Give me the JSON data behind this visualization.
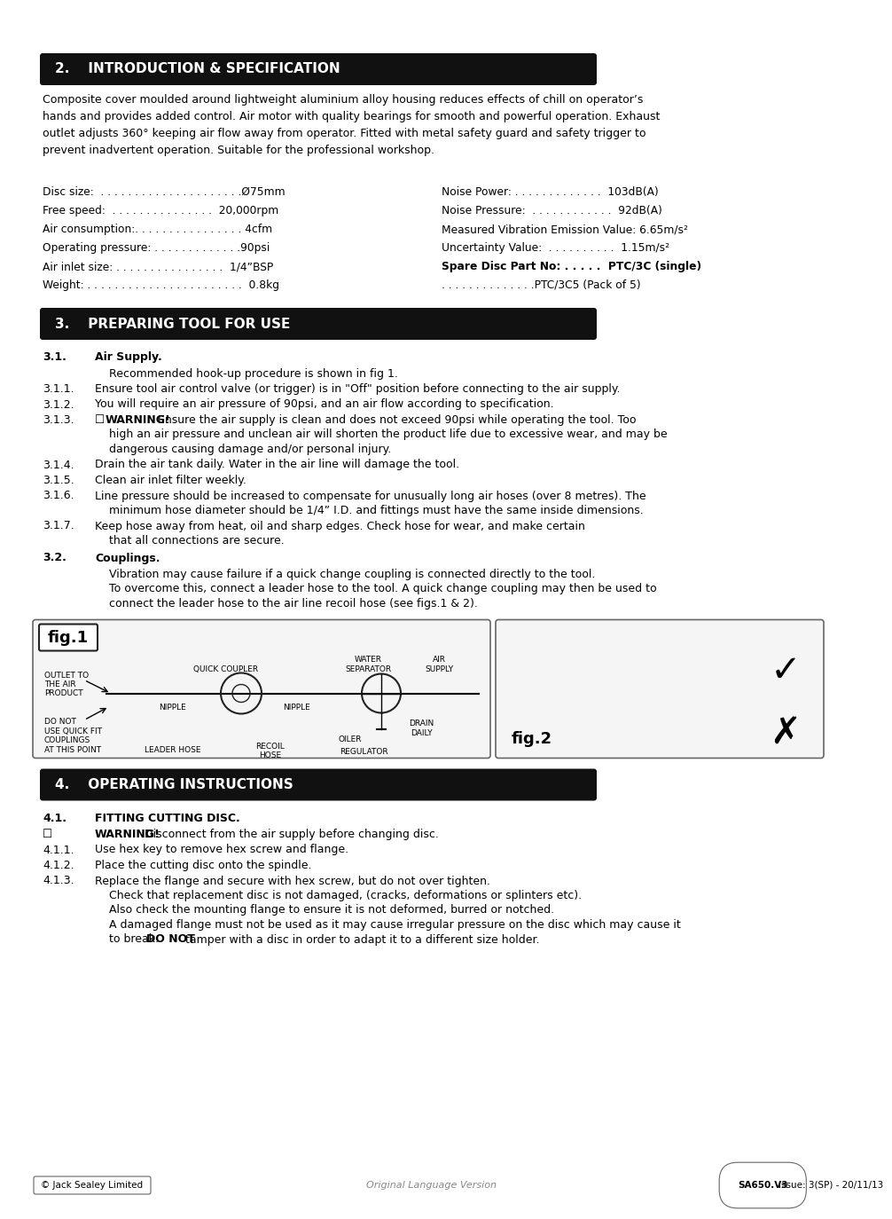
{
  "page_bg": "#ffffff",
  "header_bg": "#111111",
  "header_fg": "#ffffff",
  "body_fg": "#000000",
  "section2_title": "2.    INTRODUCTION & SPECIFICATION",
  "section3_title": "3.    PREPARING TOOL FOR USE",
  "section4_title": "4.    OPERATING INSTRUCTIONS",
  "intro_text": "Composite cover moulded around lightweight aluminium alloy housing reduces effects of chill on operator’s\nhands and provides added control. Air motor with quality bearings for smooth and powerful operation. Exhaust\noutlet adjusts 360° keeping air flow away from operator. Fitted with metal safety guard and safety trigger to\nprevent inadvertent operation. Suitable for the professional workshop.",
  "spec_left": [
    [
      "Disc size:  . . . . . . . . . . . . . . . . . . . . .Ø75mm",
      false
    ],
    [
      "Free speed:  . . . . . . . . . . . . . . .  20,000rpm",
      false
    ],
    [
      "Air consumption:. . . . . . . . . . . . . . . . 4cfm",
      false
    ],
    [
      "Operating pressure: . . . . . . . . . . . . .90psi",
      false
    ],
    [
      "Air inlet size: . . . . . . . . . . . . . . . .  1/4”BSP",
      false
    ],
    [
      "Weight: . . . . . . . . . . . . . . . . . . . . . . .  0.8kg",
      false
    ]
  ],
  "spec_right": [
    [
      "Noise Power: . . . . . . . . . . . . .  103dB(A)",
      false
    ],
    [
      "Noise Pressure:  . . . . . . . . . . . .  92dB(A)",
      false
    ],
    [
      "Measured Vibration Emission Value: 6.65m/s²",
      false
    ],
    [
      "Uncertainty Value:  . . . . . . . . . .  1.15m/s²",
      false
    ],
    [
      "Spare Disc Part No: . . . . .  PTC/3C (single)",
      true
    ],
    [
      ". . . . . . . . . . . . . .PTC/3C5 (Pack of 5)",
      false
    ]
  ],
  "s31_label": "3.1.",
  "s31_title": "Air Supply.",
  "s31_intro_indent": "Recommended hook-up procedure is shown in fig 1.",
  "s311": [
    "3.1.1.",
    "Ensure tool air control valve (or trigger) is in \"Off\" position before connecting to the air supply."
  ],
  "s312": [
    "3.1.2.",
    "You will require an air pressure of 90psi, and an air flow according to specification."
  ],
  "s313_num": "3.1.3.",
  "s313_warn_prefix": "☐",
  "s313_warn_bold": "WARNING!",
  "s313_warn_rest": " Ensure the air supply is clean and does not exceed 90psi while operating the tool. Too",
  "s313_line2": "high an air pressure and unclean air will shorten the product life due to excessive wear, and may be",
  "s313_line3": "dangerous causing damage and/or personal injury.",
  "s314": [
    "3.1.4.",
    "Drain the air tank daily. Water in the air line will damage the tool."
  ],
  "s315": [
    "3.1.5.",
    "Clean air inlet filter weekly."
  ],
  "s316": [
    "3.1.6.",
    "Line pressure should be increased to compensate for unusually long air hoses (over 8 metres). The"
  ],
  "s316_2": "minimum hose diameter should be 1/4” I.D. and fittings must have the same inside dimensions.",
  "s317": [
    "3.1.7.",
    "Keep hose away from heat, oil and sharp edges. Check hose for wear, and make certain"
  ],
  "s317_2": "that all connections are secure.",
  "s32_label": "3.2.",
  "s32_title": "Couplings.",
  "s32_line1": "Vibration may cause failure if a quick change coupling is connected directly to the tool.",
  "s32_line2": "To overcome this, connect a leader hose to the tool. A quick change coupling may then be used to",
  "s32_line3": "connect the leader hose to the air line recoil hose (see figs.1 & 2).",
  "s41_label": "4.1.",
  "s41_title": "FITTING CUTTING DISC.",
  "s41_warn_sym": "☐",
  "s41_warn_bold": "WARNING!",
  "s41_warn_rest": " Disconnect from the air supply before changing disc.",
  "s411": [
    "4.1.1.",
    "Use hex key to remove hex screw and flange."
  ],
  "s412": [
    "4.1.2.",
    "Place the cutting disc onto the spindle."
  ],
  "s413_num": "4.1.3.",
  "s413_line1": "Replace the flange and secure with hex screw, but do not over tighten.",
  "s413_line2": "Check that replacement disc is not damaged, (cracks, deformations or splinters etc).",
  "s413_line3": "Also check the mounting flange to ensure it is not deformed, burred or notched.",
  "s413_line4": "A damaged flange must not be used as it may cause irregular pressure on the disc which may cause it",
  "s413_line5_plain": "to break. ",
  "s413_line5_bold": "DO NOT",
  "s413_line5_rest": " tamper with a disc in order to adapt it to a different size holder.",
  "footer_left": "© Jack Sealey Limited",
  "footer_center": "Original Language Version",
  "footer_right": "SA650.V3",
  "footer_right2": "Issue: 3(SP) - 20/11/13",
  "fig1_labels": {
    "outlet": "OUTLET TO\nTHE AIR\nPRODUCT",
    "donot": "DO NOT\nUSE QUICK FIT\nCOUPLINGS\nAT THIS POINT",
    "nipple1": "NIPPLE",
    "nipple2": "NIPPLE",
    "leader": "LEADER HOSE",
    "recoil": "RECOIL\nHOSE",
    "quick": "QUICK COUPLER",
    "water": "WATER\nSEPARATOR",
    "air": "AIR\nSUPPLY",
    "oiler": "OILER",
    "drain": "DRAIN\nDAILY",
    "regulator": "REGULATOR"
  }
}
